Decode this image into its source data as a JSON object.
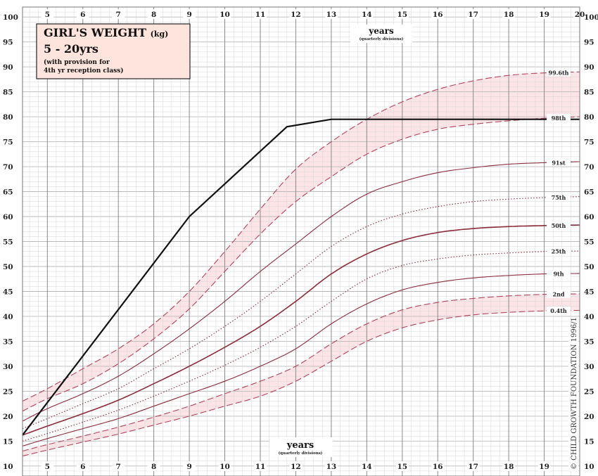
{
  "chart_data": {
    "type": "line",
    "title": "GIRL'S WEIGHT",
    "title_unit": "(kg)",
    "subtitle": "5 - 20yrs",
    "note_line1": "(with provision for",
    "note_line2": "4th yr reception class)",
    "xlabel_top": "years",
    "xlabel_top_sub": "(quarterly divisions)",
    "xlabel_bottom": "years",
    "xlabel_bottom_sub": "(quarterly divisions)",
    "copyright": "© CHILD GROWTH FOUNDATION 1996/1",
    "xlim": [
      4.3,
      20
    ],
    "ylim": [
      8,
      102
    ],
    "x_ticks_top": [
      "5",
      "6",
      "7",
      "8",
      "9",
      "10",
      "11",
      "12",
      "13",
      "14",
      "15",
      "16",
      "17",
      "18",
      "19",
      "20"
    ],
    "x_ticks_bottom": [
      "5",
      "6",
      "7",
      "8",
      "9",
      "10",
      "11",
      "12",
      "13",
      "14",
      "15",
      "16",
      "17",
      "18",
      "19"
    ],
    "y_ticks": [
      "10",
      "15",
      "20",
      "25",
      "30",
      "35",
      "40",
      "45",
      "50",
      "55",
      "60",
      "65",
      "70",
      "75",
      "80",
      "85",
      "90",
      "95",
      "100"
    ],
    "x": [
      4.3,
      5,
      6,
      7,
      8,
      9,
      10,
      11,
      12,
      13,
      14,
      15,
      16,
      17,
      18,
      19,
      20
    ],
    "series": [
      {
        "name": "99.6th",
        "style": "dashed",
        "values": [
          23.0,
          25.5,
          29.5,
          33.5,
          38.5,
          45.0,
          53.0,
          61.5,
          69.5,
          75.0,
          79.5,
          83.0,
          85.5,
          87.2,
          88.3,
          88.8,
          89.0
        ]
      },
      {
        "name": "98th",
        "style": "dashed",
        "values": [
          21.0,
          23.5,
          26.5,
          30.5,
          35.5,
          41.5,
          49.0,
          56.5,
          63.0,
          68.0,
          72.5,
          75.5,
          77.5,
          78.5,
          79.2,
          79.7,
          80.0
        ]
      },
      {
        "name": "91st",
        "style": "solid",
        "values": [
          19.0,
          21.5,
          24.5,
          28.0,
          32.5,
          37.5,
          43.0,
          49.0,
          54.5,
          60.0,
          64.5,
          67.0,
          68.8,
          69.8,
          70.5,
          70.8,
          71.0
        ]
      },
      {
        "name": "75th",
        "style": "dotted",
        "values": [
          17.5,
          19.5,
          22.5,
          25.5,
          29.5,
          33.5,
          38.0,
          43.0,
          48.5,
          54.0,
          58.0,
          60.5,
          62.0,
          63.0,
          63.5,
          63.8,
          64.0
        ]
      },
      {
        "name": "50th",
        "style": "solid",
        "values": [
          16.2,
          18.0,
          20.5,
          23.2,
          26.5,
          30.0,
          33.8,
          38.0,
          43.0,
          48.5,
          52.5,
          55.2,
          56.8,
          57.6,
          58.0,
          58.2,
          58.3
        ]
      },
      {
        "name": "25th",
        "style": "dotted",
        "values": [
          15.0,
          16.5,
          18.8,
          21.2,
          24.0,
          27.0,
          30.2,
          33.8,
          38.0,
          43.0,
          47.5,
          50.2,
          51.5,
          52.3,
          52.7,
          53.0,
          53.1
        ]
      },
      {
        "name": "9th",
        "style": "solid",
        "values": [
          14.0,
          15.5,
          17.5,
          19.5,
          22.0,
          24.5,
          27.0,
          30.0,
          33.5,
          38.5,
          42.5,
          45.3,
          46.8,
          47.7,
          48.2,
          48.5,
          48.6
        ]
      },
      {
        "name": "2nd",
        "style": "dashed",
        "values": [
          13.0,
          14.3,
          16.0,
          17.8,
          19.8,
          22.0,
          24.5,
          27.0,
          30.0,
          34.5,
          38.5,
          41.3,
          42.8,
          43.6,
          44.1,
          44.4,
          44.5
        ]
      },
      {
        "name": "0.4th",
        "style": "dashed",
        "values": [
          12.0,
          13.2,
          14.8,
          16.4,
          18.2,
          20.0,
          22.0,
          24.0,
          27.0,
          31.0,
          35.0,
          37.7,
          39.3,
          40.3,
          40.8,
          41.1,
          41.2
        ]
      }
    ],
    "bands": [
      [
        "99.6th",
        "98th"
      ],
      [
        "2nd",
        "0.4th"
      ]
    ],
    "reference_line": {
      "x": [
        4.3,
        9,
        11.75,
        13,
        20
      ],
      "y": [
        16.2,
        60,
        78,
        79.5,
        79.5
      ]
    },
    "colors": {
      "percentile": "#8b2b3a",
      "dashed": "#b3435a",
      "band": "#fde4e7",
      "grid": "#b8b8b8",
      "grid_minor": "#d6d6d6",
      "reference": "#111111",
      "title_box": "#fde4dc"
    }
  }
}
